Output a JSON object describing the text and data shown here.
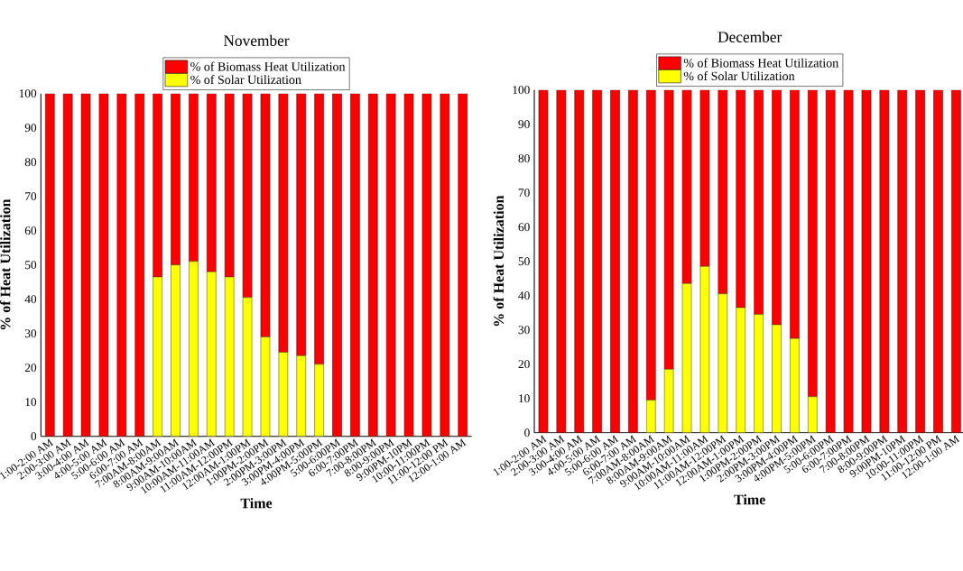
{
  "chart_data": [
    {
      "type": "bar",
      "title": "November",
      "xlabel": "Time",
      "ylabel": "% of Heat Utilization",
      "stacked": true,
      "legend": "top",
      "categories": [
        "1:00-2:00 AM",
        "2:00-3:00 AM",
        "3:00-4:00 AM",
        "4:00-5:00 AM",
        "5:00-6:00 AM",
        "6:00-7:00 AM",
        "7:00AM-8:00AM",
        "8:00AM-9:00AM",
        "9:00AM-10:00AM",
        "10:00AM-11:00AM",
        "11:00AM-12:00PM",
        "12:00AM-1:00PM",
        "1:00PM-2:00PM",
        "2:00PM-3:00PM",
        "3:00PM-4:00PM",
        "4:00PM-5:00PM",
        "5:00-6:00PM",
        "6:00-7:00PM",
        "7:00-8:00PM",
        "8:00-9:00PM",
        "9:00PM-10PM",
        "10:00-11:00PM",
        "11:00-12:00 PM",
        "12:00-1:00 AM"
      ],
      "series": [
        {
          "name": "% of Solar Utilization",
          "color": "#ffff00",
          "values": [
            0,
            0,
            0,
            0,
            0,
            0,
            46.5,
            50,
            51,
            48,
            46.5,
            40.5,
            29,
            24.5,
            23.5,
            21,
            0,
            0,
            0,
            0,
            0,
            0,
            0,
            0
          ]
        },
        {
          "name": "% of Biomass Heat Utilization",
          "color": "#ff0000",
          "values": [
            100,
            100,
            100,
            100,
            100,
            100,
            53.5,
            50,
            49,
            52,
            53.5,
            59.5,
            71,
            75.5,
            76.5,
            79,
            100,
            100,
            100,
            100,
            100,
            100,
            100,
            100
          ]
        }
      ],
      "ylim": [
        0,
        100
      ],
      "yticks": [
        0,
        10,
        20,
        30,
        40,
        50,
        60,
        70,
        80,
        90,
        100
      ]
    },
    {
      "type": "bar",
      "title": "December",
      "xlabel": "Time",
      "ylabel": "% of Heat Utilization",
      "stacked": true,
      "legend": "top",
      "categories": [
        "1:00-2:00 AM",
        "2:00-3:00 AM",
        "3:00-4:00 AM",
        "4:00-5:00 AM",
        "5:00-6:00 AM",
        "6:00-7:00 AM",
        "7:00AM-8:00AM",
        "8:00AM-9:00AM",
        "9:00AM-10:00AM",
        "10:00AM-11:00AM",
        "11:00AM-12:00PM",
        "12:00AM-1:00PM",
        "1:00PM-2:00PM",
        "2:00PM-3:00PM",
        "3:00PM-4:00PM",
        "4:00PM-5:00PM",
        "5:00-6:00PM",
        "6:00-7:00PM",
        "7:00-8:00PM",
        "8:00-9:00PM",
        "9:00PM-10PM",
        "10:00-11:00PM",
        "11:00-12:00 PM",
        "12:00-1:00 AM"
      ],
      "series": [
        {
          "name": "% of Solar Utilization",
          "color": "#ffff00",
          "values": [
            0,
            0,
            0,
            0,
            0,
            0,
            9.5,
            18.5,
            43.5,
            48.5,
            40.5,
            36.5,
            34.5,
            31.5,
            27.5,
            10.5,
            0,
            0,
            0,
            0,
            0,
            0,
            0,
            0
          ]
        },
        {
          "name": "% of Biomass Heat Utilization",
          "color": "#ff0000",
          "values": [
            100,
            100,
            100,
            100,
            100,
            100,
            90.5,
            81.5,
            56.5,
            51.5,
            59.5,
            63.5,
            65.5,
            68.5,
            72.5,
            89.5,
            100,
            100,
            100,
            100,
            100,
            100,
            100,
            100
          ]
        }
      ],
      "ylim": [
        0,
        100
      ],
      "yticks": [
        0,
        10,
        20,
        30,
        40,
        50,
        60,
        70,
        80,
        90,
        100
      ]
    }
  ]
}
